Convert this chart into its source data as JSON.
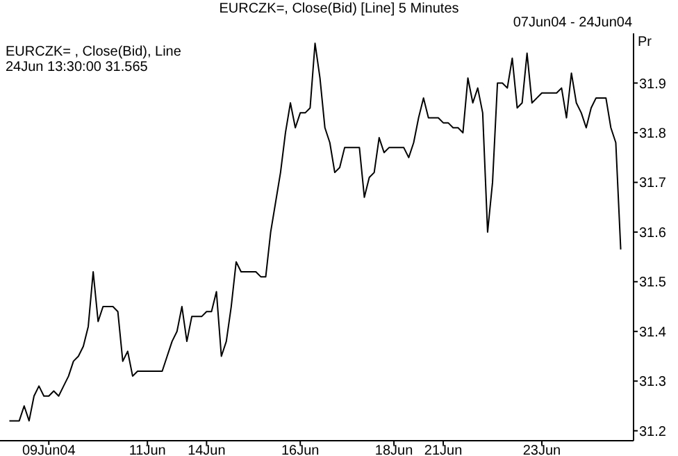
{
  "chart_data": {
    "type": "line",
    "title": "EURCZK=, Close(Bid) [Line] 5 Minutes",
    "subtitle": "07Jun04 - 24Jun04",
    "ylabel": "Pr",
    "annotations": [
      "EURCZK= , Close(Bid), Line",
      "24Jun 13:30:00 31.565"
    ],
    "categories": [
      null,
      null,
      null,
      null,
      null,
      null,
      null,
      null,
      "09Jun04",
      null,
      null,
      null,
      null,
      null,
      null,
      null,
      null,
      null,
      null,
      null,
      null,
      null,
      null,
      null,
      null,
      null,
      null,
      null,
      "11Jun",
      null,
      null,
      null,
      null,
      null,
      null,
      null,
      null,
      null,
      null,
      null,
      "14Jun",
      null,
      null,
      null,
      null,
      null,
      null,
      null,
      null,
      null,
      null,
      null,
      null,
      null,
      null,
      null,
      null,
      null,
      null,
      "16Jun",
      null,
      null,
      null,
      null,
      null,
      null,
      null,
      null,
      null,
      null,
      null,
      null,
      null,
      null,
      null,
      null,
      null,
      null,
      "18Jun",
      null,
      null,
      null,
      null,
      null,
      null,
      null,
      null,
      null,
      "21Jun",
      null,
      null,
      null,
      null,
      null,
      null,
      null,
      null,
      null,
      null,
      null,
      null,
      null,
      null,
      null,
      null,
      null,
      null,
      null,
      "23Jun",
      null,
      null,
      null,
      null,
      null,
      null,
      null,
      null,
      null,
      null,
      null,
      null,
      null,
      null,
      null,
      null
    ],
    "series": [
      {
        "color": "#000000",
        "values": [
          31.22,
          31.22,
          31.22,
          31.25,
          31.22,
          31.27,
          31.29,
          31.27,
          31.27,
          31.28,
          31.27,
          31.29,
          31.31,
          31.34,
          31.35,
          31.37,
          31.41,
          31.52,
          31.42,
          31.45,
          31.45,
          31.45,
          31.44,
          31.34,
          31.36,
          31.31,
          31.32,
          31.32,
          31.32,
          31.32,
          31.32,
          31.32,
          31.35,
          31.38,
          31.4,
          31.45,
          31.38,
          31.43,
          31.43,
          31.43,
          31.44,
          31.44,
          31.48,
          31.35,
          31.38,
          31.45,
          31.54,
          31.52,
          31.52,
          31.52,
          31.52,
          31.51,
          31.51,
          31.6,
          31.66,
          31.72,
          31.8,
          31.86,
          31.81,
          31.84,
          31.84,
          31.85,
          31.98,
          31.91,
          31.81,
          31.78,
          31.72,
          31.73,
          31.77,
          31.77,
          31.77,
          31.77,
          31.67,
          31.71,
          31.72,
          31.79,
          31.76,
          31.77,
          31.77,
          31.77,
          31.77,
          31.75,
          31.78,
          31.83,
          31.87,
          31.83,
          31.83,
          31.83,
          31.82,
          31.82,
          31.81,
          31.81,
          31.8,
          31.91,
          31.86,
          31.89,
          31.84,
          31.6,
          31.7,
          31.9,
          31.9,
          31.89,
          31.95,
          31.85,
          31.86,
          31.96,
          31.86,
          31.87,
          31.88,
          31.88,
          31.88,
          31.88,
          31.89,
          31.83,
          31.92,
          31.86,
          31.84,
          31.81,
          31.85,
          31.87,
          31.87,
          31.87,
          31.81,
          31.78,
          31.565
        ]
      }
    ],
    "ylim": [
      31.18,
      32.0
    ],
    "yticks": [
      31.2,
      31.3,
      31.4,
      31.5,
      31.6,
      31.7,
      31.8,
      31.9
    ],
    "grid": false,
    "legend": false,
    "marker": "none",
    "line_style": "solid"
  }
}
